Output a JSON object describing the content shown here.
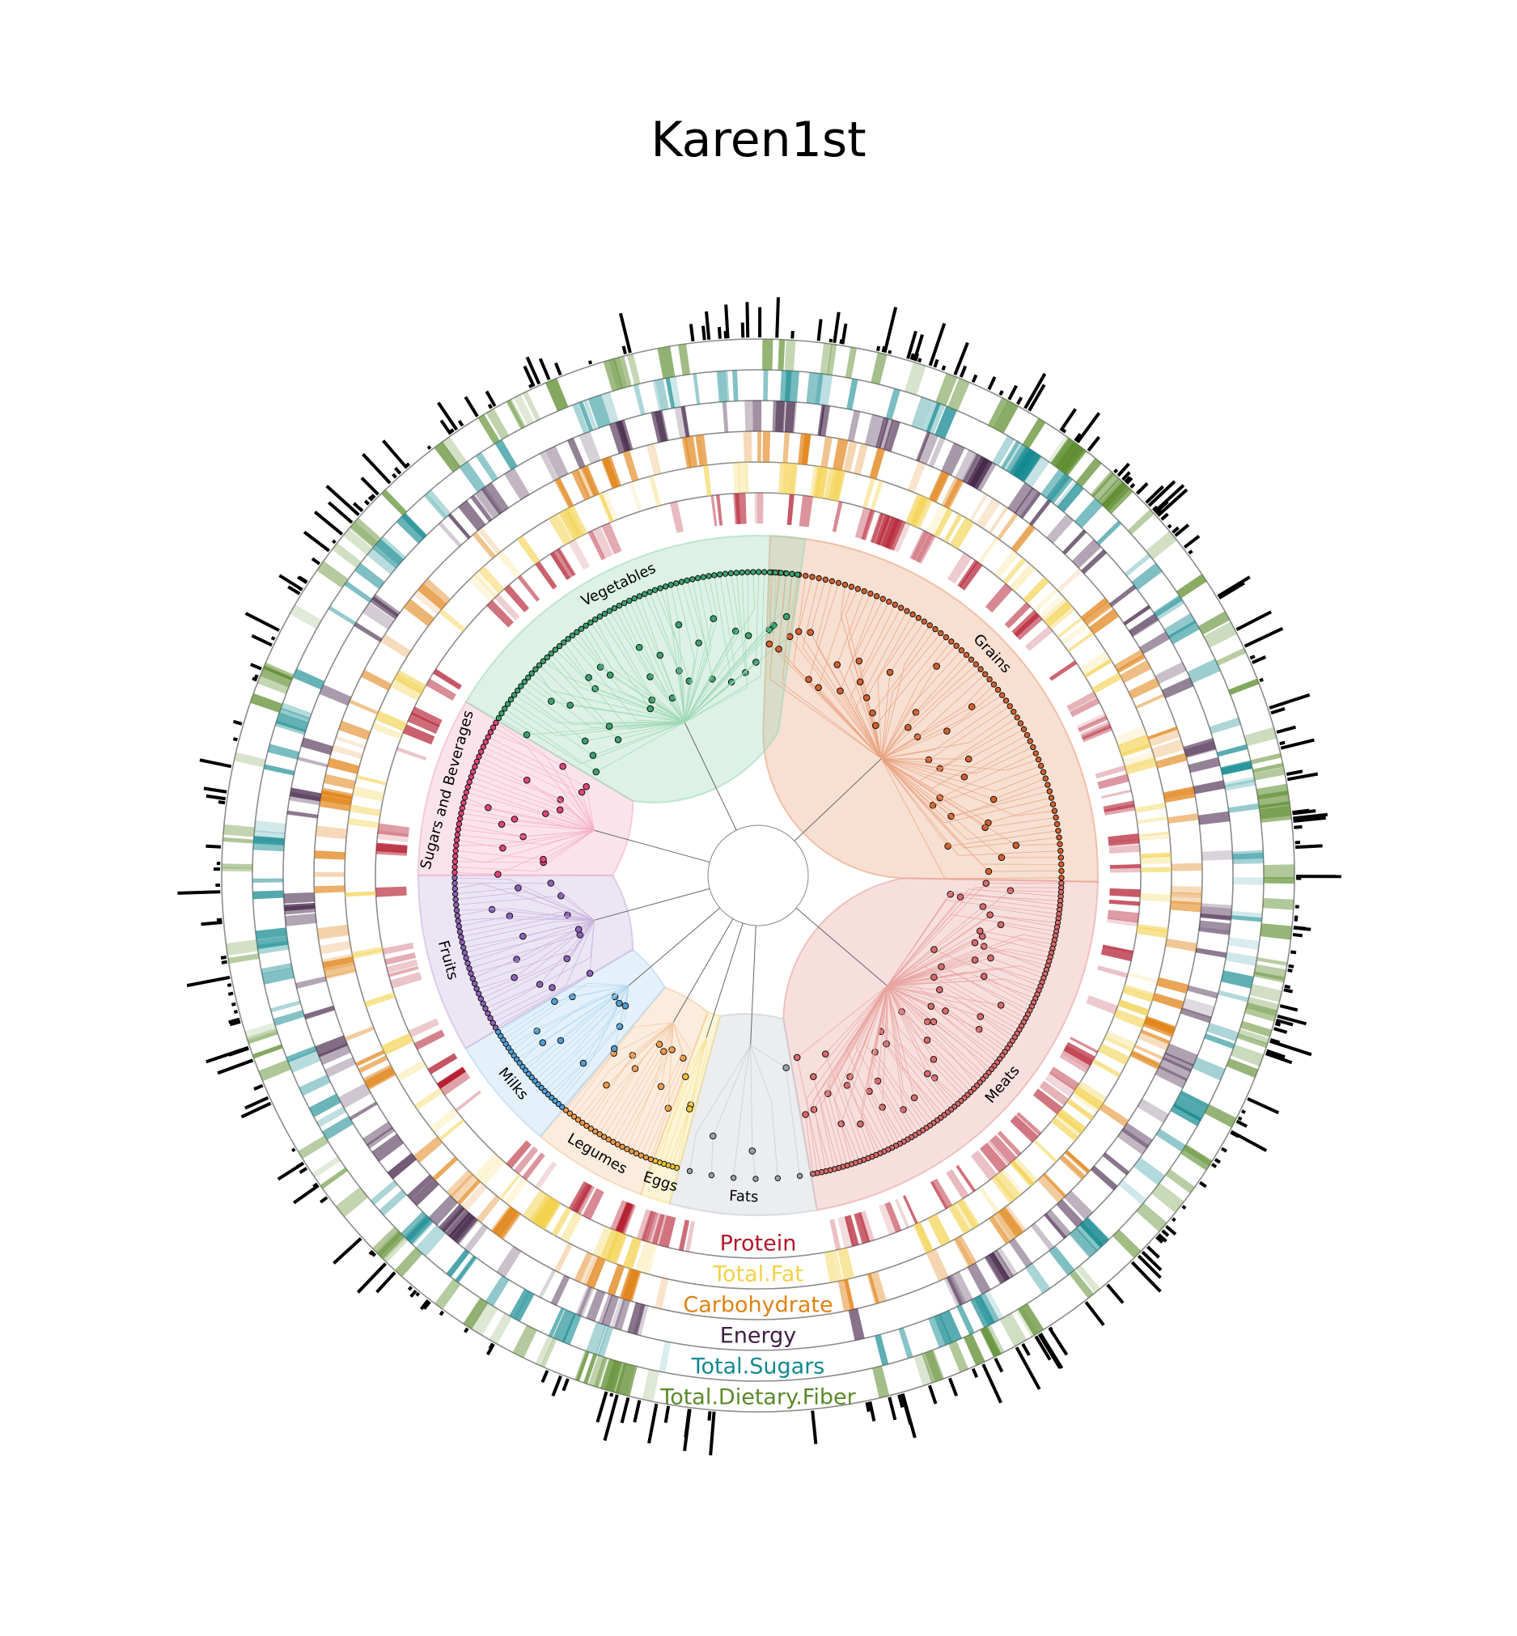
{
  "title": "Karen1st",
  "chart_data": {
    "type": "circular-dendrogram",
    "title": "Karen1st",
    "groups": [
      {
        "name": "Grains",
        "color": "#e9a37f",
        "start": 0,
        "end": 90,
        "leaves": 70
      },
      {
        "name": "Meats",
        "color": "#e8a4a0",
        "start": 90,
        "end": 166,
        "leaves": 95
      },
      {
        "name": "Fats",
        "color": "#c6ccd1",
        "start": 166,
        "end": 173,
        "leaves": 6
      },
      {
        "name": "Eggs",
        "color": "#f5e08a",
        "start": 173,
        "end": 180,
        "leaves": 6
      },
      {
        "name": "Legumes",
        "color": "#f4c8a0",
        "start": 180,
        "end": 202,
        "leaves": 20
      },
      {
        "name": "Milks",
        "color": "#b3d8f1",
        "start": 202,
        "end": 226,
        "leaves": 22
      },
      {
        "name": "Fruits",
        "color": "#c9b4de",
        "start": 226,
        "end": 262,
        "leaves": 30
      },
      {
        "name": "Sugars and Beverages",
        "color": "#f4b0c8",
        "start": 262,
        "end": 298,
        "leaves": 30
      },
      {
        "name": "Vegetables",
        "color": "#9fd8b6",
        "start": 298,
        "end": 375,
        "leaves": 64
      }
    ],
    "rings": [
      {
        "name": "Protein",
        "color": "#b2182b"
      },
      {
        "name": "Total.Fat",
        "color": "#f3d14b"
      },
      {
        "name": "Carbohydrate",
        "color": "#e08214"
      },
      {
        "name": "Energy",
        "color": "#3f1f44"
      },
      {
        "name": "Total.Sugars",
        "color": "#11888f"
      },
      {
        "name": "Total.Dietary.Fiber",
        "color": "#5a8a2a"
      }
    ],
    "outer_bars": "abundance per food item (black bars)"
  }
}
